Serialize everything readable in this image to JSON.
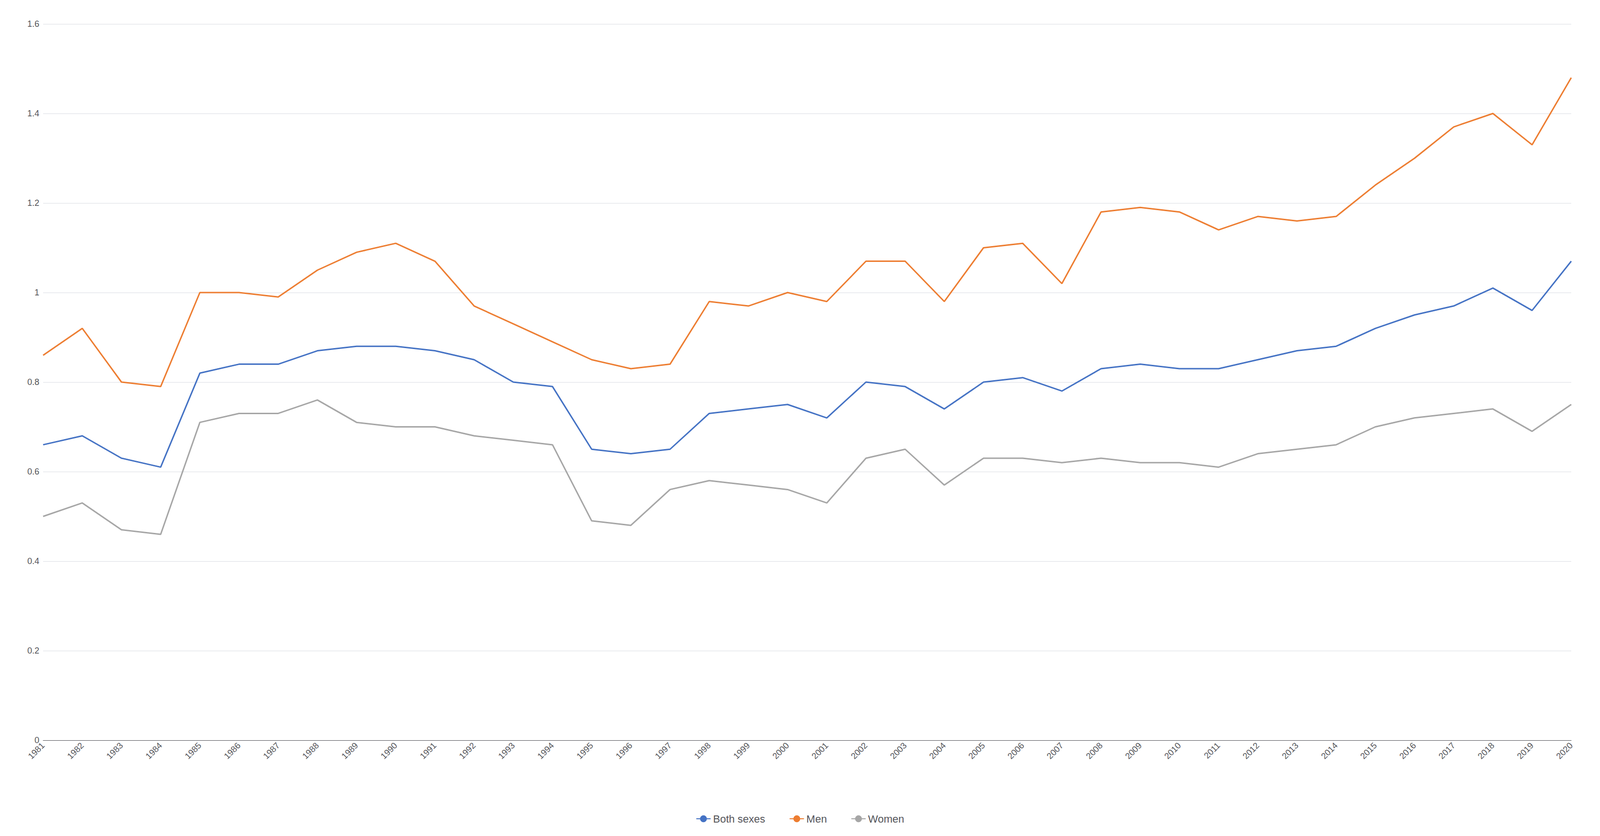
{
  "chart_data": {
    "type": "line",
    "categories": [
      "1981",
      "1982",
      "1983",
      "1984",
      "1985",
      "1986",
      "1987",
      "1988",
      "1989",
      "1990",
      "1991",
      "1992",
      "1993",
      "1994",
      "1995",
      "1996",
      "1997",
      "1998",
      "1999",
      "2000",
      "2001",
      "2002",
      "2003",
      "2004",
      "2005",
      "2006",
      "2007",
      "2008",
      "2009",
      "2010",
      "2011",
      "2012",
      "2013",
      "2014",
      "2015",
      "2016",
      "2017",
      "2018",
      "2019",
      "2020"
    ],
    "series": [
      {
        "name": "Both sexes",
        "color": "#4472C4",
        "values": [
          0.66,
          0.68,
          0.63,
          0.61,
          0.82,
          0.84,
          0.84,
          0.87,
          0.88,
          0.88,
          0.87,
          0.85,
          0.8,
          0.79,
          0.65,
          0.64,
          0.65,
          0.73,
          0.74,
          0.75,
          0.72,
          0.8,
          0.79,
          0.74,
          0.8,
          0.81,
          0.78,
          0.83,
          0.84,
          0.83,
          0.83,
          0.85,
          0.87,
          0.88,
          0.92,
          0.95,
          0.97,
          1.01,
          0.96,
          1.07
        ]
      },
      {
        "name": "Men",
        "color": "#ED7D31",
        "values": [
          0.86,
          0.92,
          0.8,
          0.79,
          1.0,
          1.0,
          0.99,
          1.05,
          1.09,
          1.11,
          1.07,
          0.97,
          0.93,
          0.89,
          0.85,
          0.83,
          0.84,
          0.98,
          0.97,
          1.0,
          0.98,
          1.07,
          1.07,
          0.98,
          1.1,
          1.11,
          1.02,
          1.18,
          1.19,
          1.18,
          1.14,
          1.17,
          1.16,
          1.17,
          1.24,
          1.3,
          1.37,
          1.4,
          1.33,
          1.48
        ]
      },
      {
        "name": "Women",
        "color": "#A6A6A6",
        "values": [
          0.5,
          0.53,
          0.47,
          0.46,
          0.71,
          0.73,
          0.73,
          0.76,
          0.71,
          0.7,
          0.7,
          0.68,
          0.67,
          0.66,
          0.49,
          0.48,
          0.56,
          0.58,
          0.57,
          0.56,
          0.53,
          0.63,
          0.65,
          0.57,
          0.63,
          0.63,
          0.62,
          0.63,
          0.62,
          0.62,
          0.61,
          0.64,
          0.65,
          0.66,
          0.7,
          0.72,
          0.73,
          0.74,
          0.69,
          0.75
        ]
      }
    ],
    "ylim": [
      0,
      1.6
    ],
    "yticks": [
      0,
      0.2,
      0.4,
      0.6,
      0.8,
      1,
      1.2,
      1.4,
      1.6
    ],
    "grid": true,
    "legend": "bottom"
  }
}
